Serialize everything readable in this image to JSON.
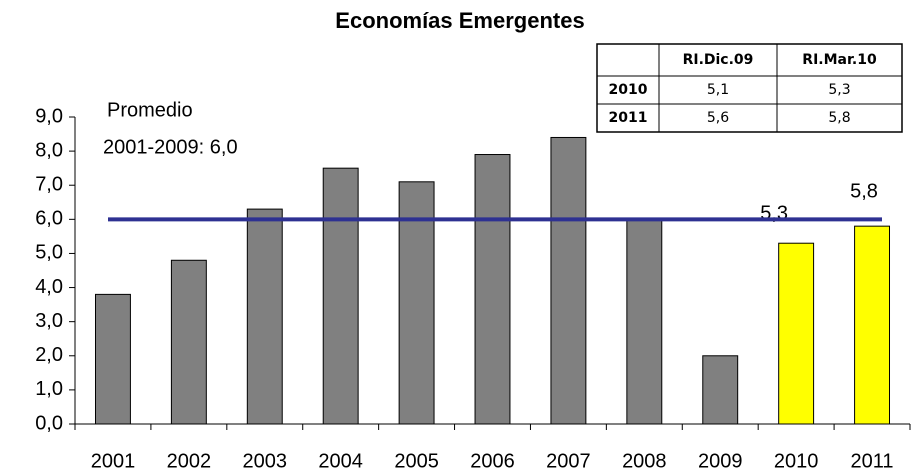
{
  "chart_data": {
    "type": "bar",
    "title": "Economías Emergentes",
    "categories": [
      "2001",
      "2002",
      "2003",
      "2004",
      "2005",
      "2006",
      "2007",
      "2008",
      "2009",
      "2010",
      "2011"
    ],
    "values": [
      3.8,
      4.8,
      6.3,
      7.5,
      7.1,
      7.9,
      8.4,
      6.0,
      2.0,
      5.3,
      5.8
    ],
    "value_labels": [
      null,
      null,
      null,
      null,
      null,
      null,
      null,
      null,
      null,
      "5,3",
      "5,8"
    ],
    "colors": [
      "#808080",
      "#808080",
      "#808080",
      "#808080",
      "#808080",
      "#808080",
      "#808080",
      "#808080",
      "#808080",
      "#ffff00",
      "#ffff00"
    ],
    "average": 6.0,
    "average_color": "#2e3192",
    "annotations": [
      "Promedio",
      "2001-2009: 6,0"
    ],
    "ylim": [
      0,
      9
    ],
    "yticks": [
      {
        "value": 0,
        "label": "0,0"
      },
      {
        "value": 1,
        "label": "1,0"
      },
      {
        "value": 2,
        "label": "2,0"
      },
      {
        "value": 3,
        "label": "3,0"
      },
      {
        "value": 4,
        "label": "4,0"
      },
      {
        "value": 5,
        "label": "5,0"
      },
      {
        "value": 6,
        "label": "6,0"
      },
      {
        "value": 7,
        "label": "7,0"
      },
      {
        "value": 8,
        "label": "8,0"
      },
      {
        "value": 9,
        "label": "9,0"
      }
    ],
    "table": {
      "columns": [
        "RI.Dic.09",
        "RI.Mar.10"
      ],
      "rows": [
        {
          "label": "2010",
          "values": [
            "5,1",
            "5,3"
          ]
        },
        {
          "label": "2011",
          "values": [
            "5,6",
            "5,8"
          ]
        }
      ]
    }
  }
}
